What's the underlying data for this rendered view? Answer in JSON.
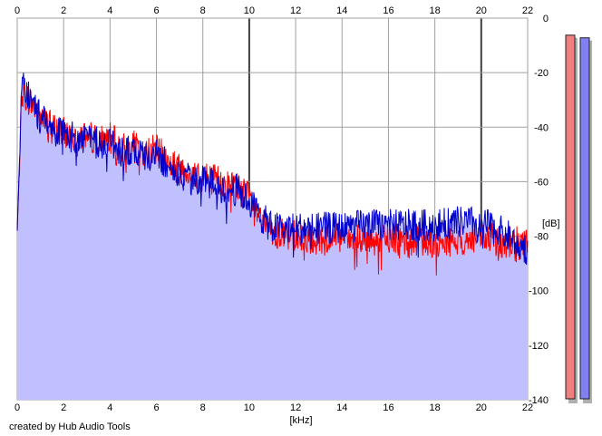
{
  "chart_data": {
    "type": "area",
    "title": "",
    "xlabel": "[kHz]",
    "ylabel": "[dB]",
    "xlim": [
      0,
      22
    ],
    "ylim": [
      -140,
      0
    ],
    "x_ticks": [
      0,
      2,
      4,
      6,
      8,
      10,
      12,
      14,
      16,
      18,
      20,
      22
    ],
    "y_ticks": [
      0,
      -20,
      -40,
      -60,
      -80,
      -100,
      -120,
      -140
    ],
    "x_tick_labels": [
      "0",
      "2",
      "4",
      "6",
      "8",
      "10",
      "12",
      "14",
      "16",
      "18",
      "20",
      "22"
    ],
    "y_tick_labels": [
      "0",
      "-20",
      "-40",
      "-60",
      "-80",
      "-100",
      "-120",
      "-140"
    ],
    "grid": true,
    "x_tick_labels_position": "top-and-bottom",
    "y_tick_labels_position": "right",
    "series": [
      {
        "color": "#ff0000",
        "x": [
          0,
          0.2,
          0.5,
          1,
          1.5,
          2,
          2.5,
          3,
          3.5,
          4,
          4.5,
          5,
          5.5,
          6,
          6.5,
          7,
          7.5,
          8,
          8.5,
          9,
          9.5,
          10,
          10.5,
          11,
          12,
          13,
          14,
          15,
          16,
          17,
          18,
          19,
          20,
          21,
          22
        ],
        "y": [
          -78,
          -27,
          -30,
          -36,
          -40,
          -42,
          -43,
          -43,
          -45,
          -44,
          -48,
          -47,
          -50,
          -48,
          -53,
          -55,
          -56,
          -58,
          -59,
          -61,
          -62,
          -66,
          -74,
          -79,
          -80,
          -81,
          -81,
          -82,
          -81,
          -82,
          -82,
          -82,
          -81,
          -82,
          -82
        ]
      },
      {
        "color": "#0000cc",
        "x": [
          0,
          0.2,
          0.5,
          1,
          1.5,
          2,
          2.5,
          3,
          3.5,
          4,
          4.5,
          5,
          5.5,
          6,
          6.5,
          7,
          7.5,
          8,
          8.5,
          9,
          9.5,
          10,
          10.5,
          11,
          12,
          13,
          14,
          15,
          16,
          17,
          18,
          19,
          20,
          21,
          22
        ],
        "y": [
          -78,
          -24,
          -29,
          -37,
          -41,
          -43,
          -44,
          -44,
          -46,
          -45,
          -49,
          -48,
          -52,
          -50,
          -54,
          -58,
          -59,
          -60,
          -61,
          -63,
          -63,
          -67,
          -73,
          -77,
          -77,
          -77,
          -77,
          -76,
          -76,
          -76,
          -76,
          -75,
          -75,
          -79,
          -85
        ]
      }
    ],
    "fill_color": "#c0c0ff",
    "level_meters": [
      {
        "channel": "left",
        "color": "#f08080",
        "level_db": -3
      },
      {
        "channel": "right",
        "color": "#8080f0",
        "level_db": -4
      }
    ]
  },
  "footer": {
    "credit": "created by Hub Audio Tools"
  }
}
